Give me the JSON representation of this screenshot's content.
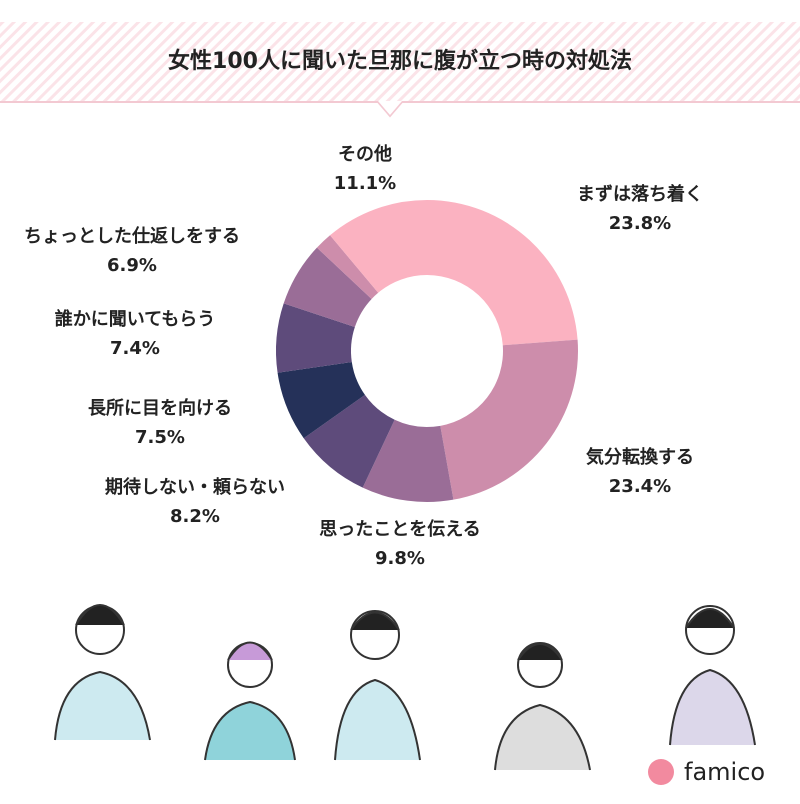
{
  "chart_data": {
    "type": "donut",
    "title": "女性100人に聞いた旦那に腹が立つ時の対処法",
    "categories": [
      "まずは落ち着く",
      "気分転換する",
      "思ったことを伝える",
      "期待しない・頼らない",
      "長所に目を向ける",
      "誰かに聞いてもらう",
      "ちょっとした仕返しをする",
      null,
      "その他"
    ],
    "values": [
      23.8,
      23.4,
      9.8,
      8.2,
      7.5,
      7.4,
      6.9,
      1.9,
      11.1
    ],
    "value_labels": [
      "23.8%",
      "23.4%",
      "9.8%",
      "8.2%",
      "7.5%",
      "7.4%",
      "6.9%",
      null,
      "11.1%"
    ],
    "colors": [
      "#fbb2c1",
      "#cd8dab",
      "#9a6d97",
      "#5e4b7b",
      "#253159",
      "#5e4b7b",
      "#9a6d97",
      "#cd8dab",
      "#fbb2c1"
    ]
  },
  "brand": "famico"
}
